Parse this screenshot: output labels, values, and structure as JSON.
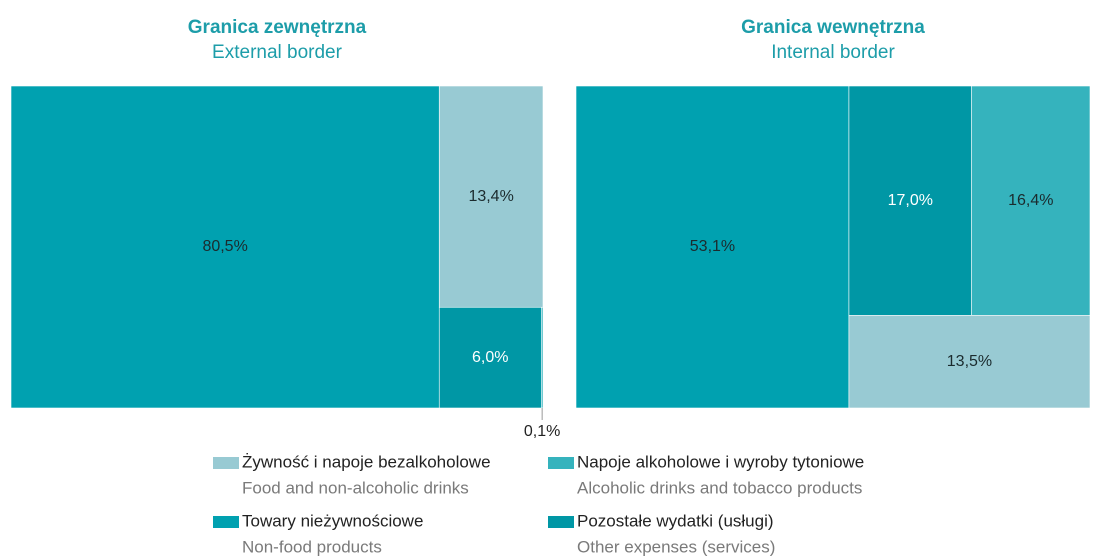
{
  "legend": [
    {
      "name": "Żywność i napoje bezalkoholowe",
      "name_en": "Food and non-alcoholic drinks",
      "color": "#98cad3",
      "label_color": "#1b2b2e"
    },
    {
      "name": "Napoje alkoholowe i wyroby tytoniowe",
      "name_en": "Alcoholic drinks and tobacco products",
      "color": "#35b3bd",
      "label_color": "#1b2b2e"
    },
    {
      "name": "Towary nieżywnościowe",
      "name_en": "Non-food products",
      "color": "#00a1b0",
      "label_color": "#1b2b2e"
    },
    {
      "name": "Pozostałe wydatki (usługi)",
      "name_en": "Other expenses (services)",
      "color": "#0097a5",
      "label_color": "#ffffff"
    }
  ],
  "chart_data": [
    {
      "type": "treemap",
      "title": "Granica zewnętrzna",
      "subtitle": "External border",
      "values": [
        13.4,
        0.1,
        80.5,
        6.0
      ],
      "value_labels": [
        "13,4%",
        "0,1%",
        "80,5%",
        "6,0%"
      ]
    },
    {
      "type": "treemap",
      "title": "Granica wewnętrzna",
      "subtitle": "Internal border",
      "values": [
        13.5,
        16.4,
        53.1,
        17.0
      ],
      "value_labels": [
        "13,5%",
        "16,4%",
        "53,1%",
        "17,0%"
      ]
    }
  ]
}
